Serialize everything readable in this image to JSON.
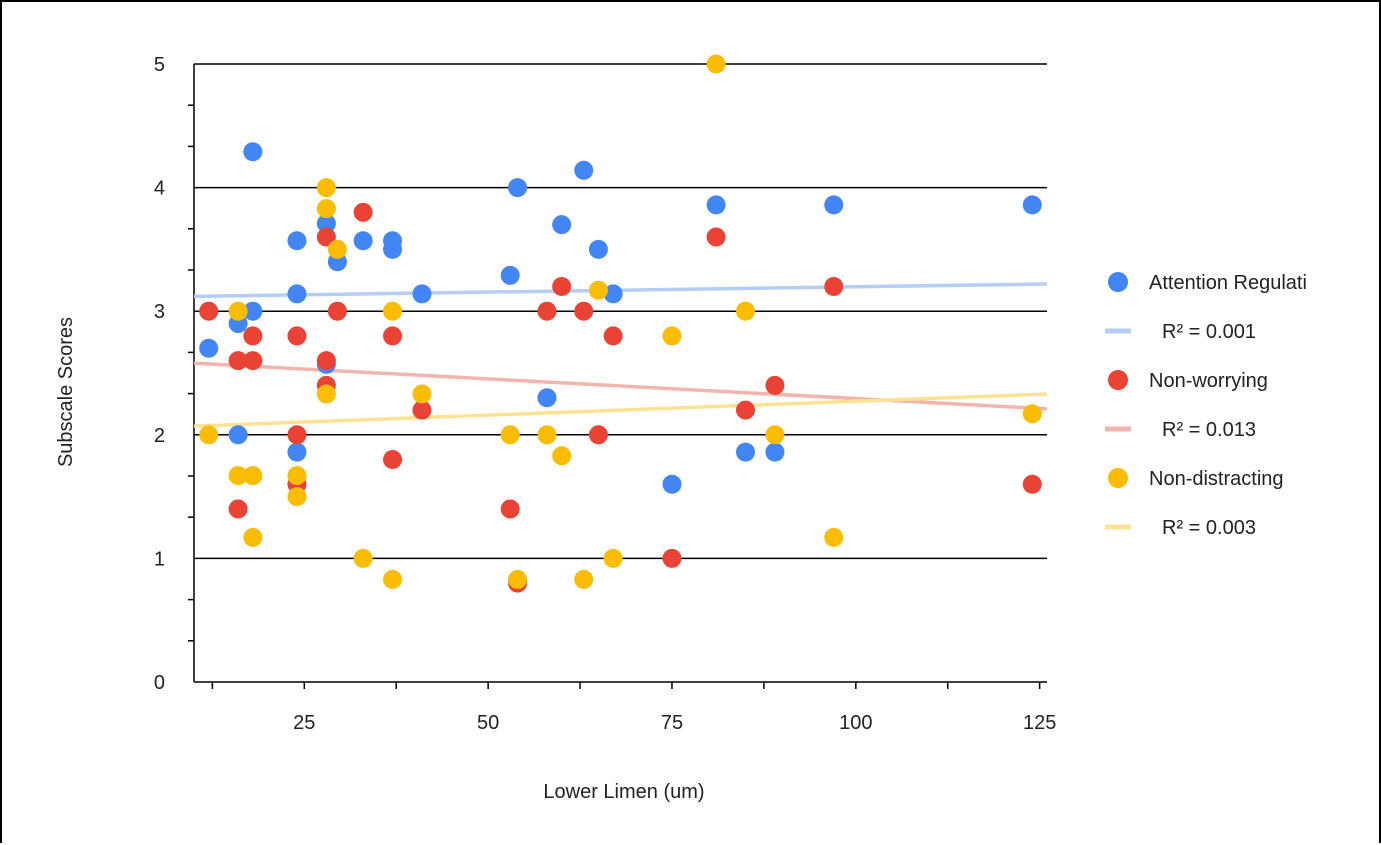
{
  "chart_data": {
    "type": "scatter",
    "title": "",
    "xlabel": "Lower Limen (um)",
    "ylabel": "Subscale Scores",
    "xlim": [
      10,
      126
    ],
    "ylim": [
      0,
      5
    ],
    "x_ticks": [
      25,
      50,
      75,
      100,
      125
    ],
    "y_ticks": [
      0,
      1,
      2,
      3,
      4,
      5
    ],
    "grid": "horizontal",
    "legend_position": "right",
    "series": [
      {
        "name": "Attention Regulati",
        "color": "#4285f4",
        "trend_label": "R² = 0.001",
        "trend_color": "#b3cdf7",
        "trend": [
          [
            10,
            3.12
          ],
          [
            126,
            3.22
          ]
        ],
        "points": [
          [
            12,
            2.7
          ],
          [
            16,
            2.0
          ],
          [
            16,
            2.9
          ],
          [
            18,
            4.29
          ],
          [
            18,
            3.0
          ],
          [
            24,
            1.86
          ],
          [
            24,
            3.57
          ],
          [
            24,
            3.14
          ],
          [
            28,
            3.71
          ],
          [
            28,
            2.57
          ],
          [
            29.5,
            3.4
          ],
          [
            33,
            3.57
          ],
          [
            37,
            3.57
          ],
          [
            37,
            3.5
          ],
          [
            41,
            3.14
          ],
          [
            53,
            3.29
          ],
          [
            54,
            4.0
          ],
          [
            58,
            2.3
          ],
          [
            60,
            3.7
          ],
          [
            63,
            4.14
          ],
          [
            65,
            3.5
          ],
          [
            67,
            3.14
          ],
          [
            75,
            1.6
          ],
          [
            81,
            3.86
          ],
          [
            85,
            1.86
          ],
          [
            89,
            1.86
          ],
          [
            97,
            3.86
          ],
          [
            124,
            3.86
          ]
        ]
      },
      {
        "name": "Non-worrying",
        "color": "#ea4335",
        "trend_label": "R² = 0.013",
        "trend_color": "#f4b4ae",
        "trend": [
          [
            10,
            2.58
          ],
          [
            126,
            2.21
          ]
        ],
        "points": [
          [
            12,
            3.0
          ],
          [
            16,
            2.6
          ],
          [
            16,
            1.4
          ],
          [
            18,
            2.8
          ],
          [
            18,
            2.6
          ],
          [
            24,
            2.8
          ],
          [
            24,
            2.0
          ],
          [
            24,
            1.6
          ],
          [
            28,
            3.6
          ],
          [
            28,
            2.6
          ],
          [
            28,
            2.4
          ],
          [
            29.5,
            3.0
          ],
          [
            33,
            3.8
          ],
          [
            37,
            2.8
          ],
          [
            37,
            1.8
          ],
          [
            41,
            2.2
          ],
          [
            53,
            1.4
          ],
          [
            54,
            0.8
          ],
          [
            58,
            3.0
          ],
          [
            60,
            3.2
          ],
          [
            63,
            3.0
          ],
          [
            65,
            2.0
          ],
          [
            67,
            2.8
          ],
          [
            75,
            1.0
          ],
          [
            81,
            3.6
          ],
          [
            85,
            2.2
          ],
          [
            89,
            2.4
          ],
          [
            97,
            3.2
          ],
          [
            124,
            1.6
          ]
        ]
      },
      {
        "name": "Non-distracting",
        "color": "#fbbc04",
        "trend_label": "R² = 0.003",
        "trend_color": "#fde293",
        "trend": [
          [
            10,
            2.07
          ],
          [
            126,
            2.33
          ]
        ],
        "points": [
          [
            12,
            2.0
          ],
          [
            16,
            3.0
          ],
          [
            16,
            1.67
          ],
          [
            18,
            1.67
          ],
          [
            18,
            1.17
          ],
          [
            24,
            1.67
          ],
          [
            24,
            1.5
          ],
          [
            28,
            4.0
          ],
          [
            28,
            3.83
          ],
          [
            28,
            2.33
          ],
          [
            29.5,
            3.5
          ],
          [
            33,
            1.0
          ],
          [
            37,
            3.0
          ],
          [
            37,
            0.83
          ],
          [
            41,
            2.33
          ],
          [
            53,
            2.0
          ],
          [
            54,
            0.83
          ],
          [
            58,
            2.0
          ],
          [
            60,
            1.83
          ],
          [
            63,
            0.83
          ],
          [
            65,
            3.17
          ],
          [
            67,
            1.0
          ],
          [
            75,
            2.8
          ],
          [
            81,
            5.0
          ],
          [
            85,
            3.0
          ],
          [
            89,
            2.0
          ],
          [
            97,
            1.17
          ],
          [
            124,
            2.17
          ]
        ]
      }
    ]
  }
}
